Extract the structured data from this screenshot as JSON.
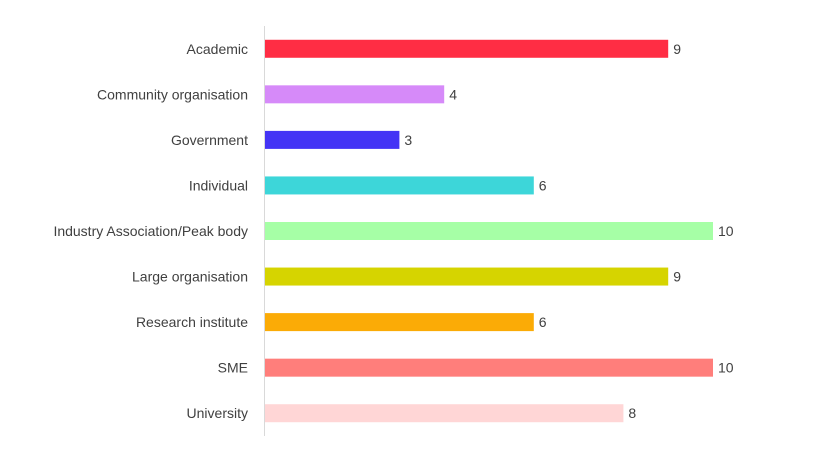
{
  "chart_data": {
    "type": "bar",
    "orientation": "horizontal",
    "title": "",
    "xlabel": "",
    "ylabel": "",
    "xlim": [
      0,
      10
    ],
    "grid": false,
    "legend": "none",
    "categories": [
      "Academic",
      "Community organisation",
      "Government",
      "Individual",
      "Industry Association/Peak body",
      "Large organisation",
      "Research institute",
      "SME",
      "University"
    ],
    "values": [
      9,
      4,
      3,
      6,
      10,
      9,
      6,
      10,
      8
    ],
    "colors": [
      "#ff2d44",
      "#d68af9",
      "#4434f5",
      "#3dd6d9",
      "#a6ffa6",
      "#d6d400",
      "#fbab06",
      "#ff7e7b",
      "#ffd6d6"
    ]
  }
}
